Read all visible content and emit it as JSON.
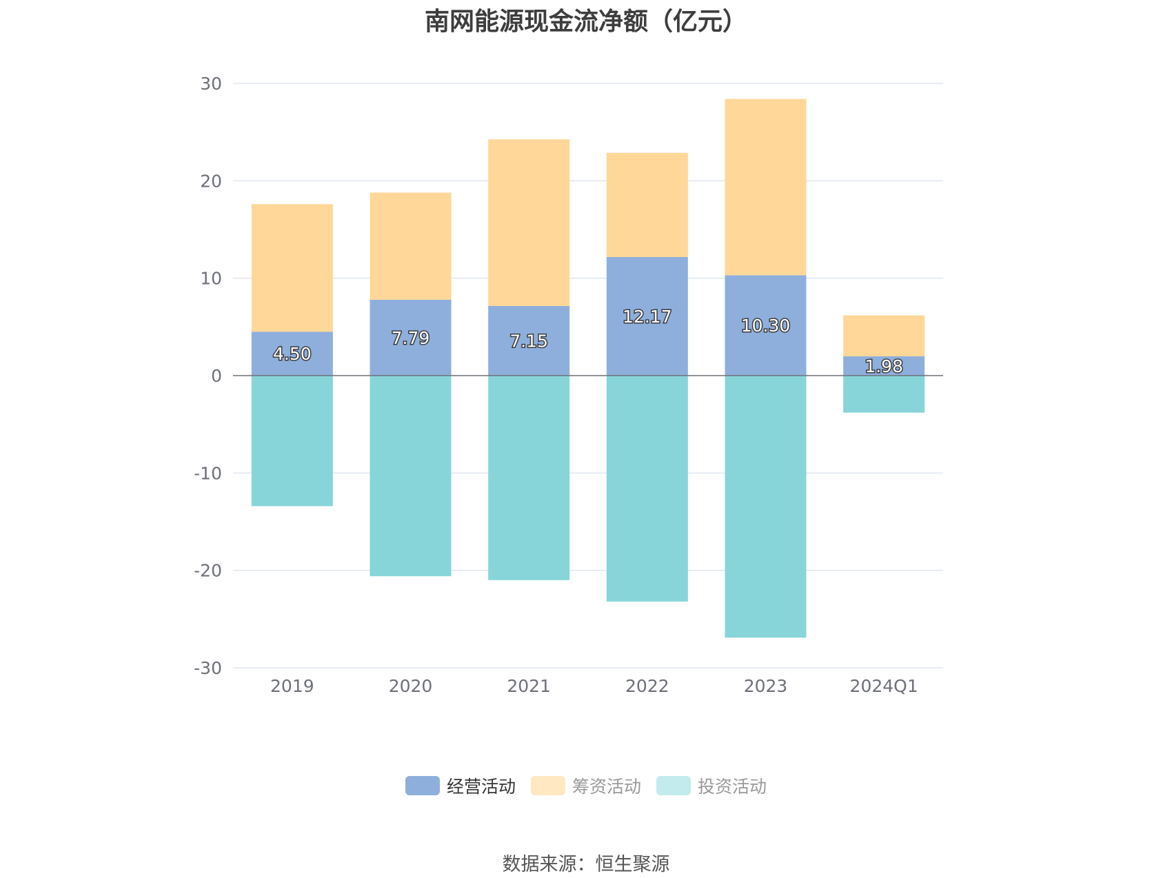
{
  "title": "南网能源现金流净额（亿元）",
  "source": "数据来源：恒生聚源",
  "colors": {
    "operating": "#8eaedb",
    "financing": "#ffd899",
    "investing": "#87d5d9",
    "legend_financing": "#ffe8c2",
    "legend_investing": "#c3eaec",
    "grid": "#e0e6f1",
    "zero_line": "#6e7079"
  },
  "legend": [
    {
      "label": "经营活动",
      "series": "operating",
      "text_color": "#333333"
    },
    {
      "label": "筹资活动",
      "series": "financing",
      "text_color": "#999999"
    },
    {
      "label": "投资活动",
      "series": "investing",
      "text_color": "#999999"
    }
  ],
  "chart_data": {
    "type": "bar",
    "stacked": true,
    "categories": [
      "2019",
      "2020",
      "2021",
      "2022",
      "2023",
      "2024Q1"
    ],
    "series": [
      {
        "name": "经营活动",
        "key": "operating",
        "values": [
          4.5,
          7.79,
          7.15,
          12.17,
          10.3,
          1.98
        ],
        "labels": [
          "4.50",
          "7.79",
          "7.15",
          "12.17",
          "10.30",
          "1.98"
        ]
      },
      {
        "name": "筹资活动",
        "key": "financing",
        "values": [
          13.1,
          11.0,
          17.1,
          10.7,
          18.1,
          4.2
        ]
      },
      {
        "name": "投资活动",
        "key": "investing",
        "values": [
          -13.4,
          -20.6,
          -21.0,
          -23.2,
          -26.9,
          -3.8
        ]
      }
    ],
    "ylim": [
      -30,
      30
    ],
    "yticks": [
      "30",
      "20",
      "10",
      "0",
      "-10",
      "-20",
      "-30"
    ],
    "ytick_values": [
      30,
      20,
      10,
      0,
      -10,
      -20,
      -30
    ],
    "grid": true,
    "legend_position": "bottom"
  }
}
